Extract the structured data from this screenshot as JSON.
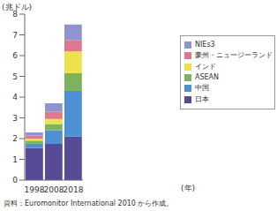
{
  "chart_data": {
    "type": "bar",
    "stacked": true,
    "grid": false,
    "legend": "right",
    "y_label": "(兆ドル)",
    "x_label": "(年)",
    "note": "資料：Euromonitor International 2010 から作成。",
    "categories": [
      "1998",
      "2008",
      "2018"
    ],
    "ylim": [
      0,
      8
    ],
    "yticks": [
      0,
      1,
      2,
      3,
      4,
      5,
      6,
      7,
      8
    ],
    "series": [
      {
        "name": "日本",
        "color": "#574a97",
        "values": [
          1.55,
          1.75,
          2.1
        ]
      },
      {
        "name": "中国",
        "color": "#4f8fd4",
        "values": [
          0.2,
          0.65,
          2.2
        ]
      },
      {
        "name": "ASEAN",
        "color": "#7db35c",
        "values": [
          0.15,
          0.3,
          0.85
        ]
      },
      {
        "name": "インド",
        "color": "#eee24c",
        "values": [
          0.1,
          0.25,
          1.05
        ]
      },
      {
        "name": "豪州・ニュージーランド",
        "color": "#e0788c",
        "values": [
          0.15,
          0.35,
          0.55
        ]
      },
      {
        "name": "NIEs3",
        "color": "#8f95d0",
        "values": [
          0.15,
          0.4,
          0.75
        ]
      }
    ]
  }
}
